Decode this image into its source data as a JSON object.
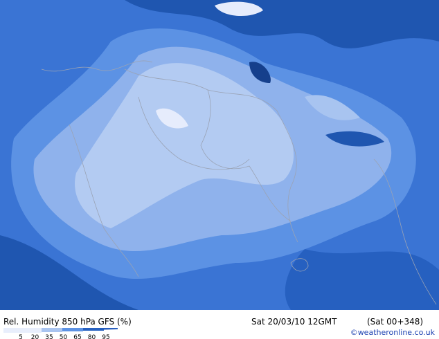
{
  "title": "Rel. Humidity 850 hPa GFS (%)",
  "valid_time": "Sat 20/03/10 12GMT",
  "forecast": "(Sat 00+348)",
  "legend": {
    "ticks": [
      5,
      20,
      35,
      50,
      65,
      80,
      95
    ]
  },
  "credit": "©weatheronline.co.uk"
}
